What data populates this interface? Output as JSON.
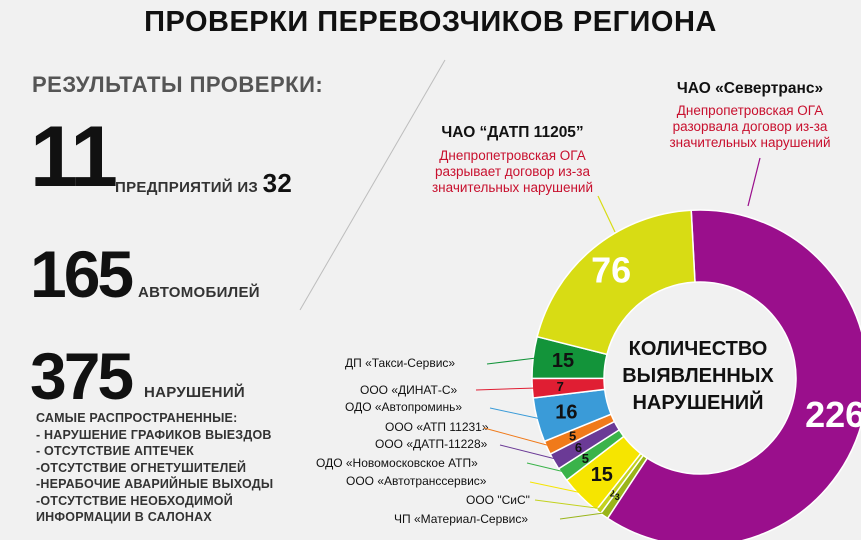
{
  "header": {
    "title": "ПРОВЕРКИ ПЕРЕВОЗЧИКОВ РЕГИОНА"
  },
  "results": {
    "heading": "РЕЗУЛЬТАТЫ ПРОВЕРКИ:",
    "companies": {
      "number": "11",
      "label": "ПРЕДПРИЯТИЙ ИЗ",
      "total": "32"
    },
    "vehicles": {
      "number": "165",
      "label": "АВТОМОБИЛЕЙ"
    },
    "violations": {
      "number": "375",
      "label": "НАРУШЕНИЙ"
    },
    "common_heading": "САМЫЕ РАСПРОСТРАНЕННЫЕ:",
    "common_items": [
      "- НАРУШЕНИЕ ГРАФИКОВ ВЫЕЗДОВ",
      "- ОТСУТСТВИЕ АПТЕЧЕК",
      "-ОТСУТСТВИЕ ОГНЕТУШИТЕЛЕЙ",
      "-НЕРАБОЧИЕ АВАРИЙНЫЕ ВЫХОДЫ",
      "-ОТСУТСТВИЕ НЕОБХОДИМОЙ",
      "ИНФОРМАЦИИ В САЛОНАХ"
    ]
  },
  "callouts": {
    "severtrans": {
      "name": "ЧАО «Севертранс»",
      "note": [
        "Днепропетровская ОГА",
        "разорвала договор из-за",
        "значительных нарушений"
      ]
    },
    "datp": {
      "name": "ЧАО “ДАТП 11205”",
      "note": [
        "Днепропетровская ОГА",
        "разрывает договор из-за",
        "значительных нарушений"
      ]
    }
  },
  "colors": {
    "purple": "#9a0f8c",
    "yellow_green": "#d8dc14",
    "green": "#13943a",
    "red": "#e01e33",
    "pink": "#e6007e",
    "blue": "#3a9bd8",
    "orange": "#f07a1a",
    "dark_red": "#b3122e",
    "violet": "#6b3a96",
    "light_green": "#3ab34a",
    "yellow": "#f6e500",
    "olive": "#9ab51a"
  },
  "chart_data": {
    "type": "pie",
    "title": "КОЛИЧЕСТВО ВЫЯВЛЕННЫХ НАРУШЕНИЙ",
    "title_lines": [
      "КОЛИЧЕСТВО",
      "ВЫЯВЛЕННЫХ",
      "НАРУШЕНИЙ"
    ],
    "slices": [
      {
        "name": "ЧАО «Севертранс»",
        "value": 226,
        "label": "226",
        "color": "#9a0f8c"
      },
      {
        "name": "ЧП «Материал-Сервис»",
        "value": 3,
        "label": "3",
        "color": "#9ab51a"
      },
      {
        "name": "ООО \"СиС\"",
        "value": 2,
        "label": "2",
        "color": "#c3d21e"
      },
      {
        "name": "ООО «Автотранссервис»",
        "value": 15,
        "label": "15",
        "color": "#f6e500"
      },
      {
        "name": "ООО «Новомосковское АТП»",
        "value": 5,
        "label": "5",
        "color": "#3ab34a"
      },
      {
        "name": "ООО «ДАТП-11228»",
        "value": 6,
        "label": "6",
        "color": "#6b3a96"
      },
      {
        "name": "ООО «АТП 11231»",
        "value": 5,
        "label": "5",
        "color": "#f07a1a"
      },
      {
        "name": "ОДО «Автопроминь»",
        "value": 16,
        "label": "16",
        "color": "#3a9bd8"
      },
      {
        "name": "ООО «ДИНАТ-С»",
        "value": 7,
        "label": "7",
        "color": "#e01e33"
      },
      {
        "name": "ДП «Такси-Сервис»",
        "value": 15,
        "label": "15",
        "color": "#13943a"
      },
      {
        "name": "ЧАО “ДАТП 11205”",
        "value": 76,
        "label": "76",
        "color": "#d8dc14"
      }
    ]
  },
  "legend_labels": [
    "ДП «Такси-Сервис»",
    "ООО «ДИНАТ-С»",
    "ОДО «Автопроминь»",
    "ООО «АТП 11231»",
    "ООО «ДАТП-11228»",
    "ОДО «Новомосковское АТП»",
    "ООО «Автотранссервис»",
    "ООО \"СиС\"",
    "ЧП «Материал-Сервис»"
  ]
}
